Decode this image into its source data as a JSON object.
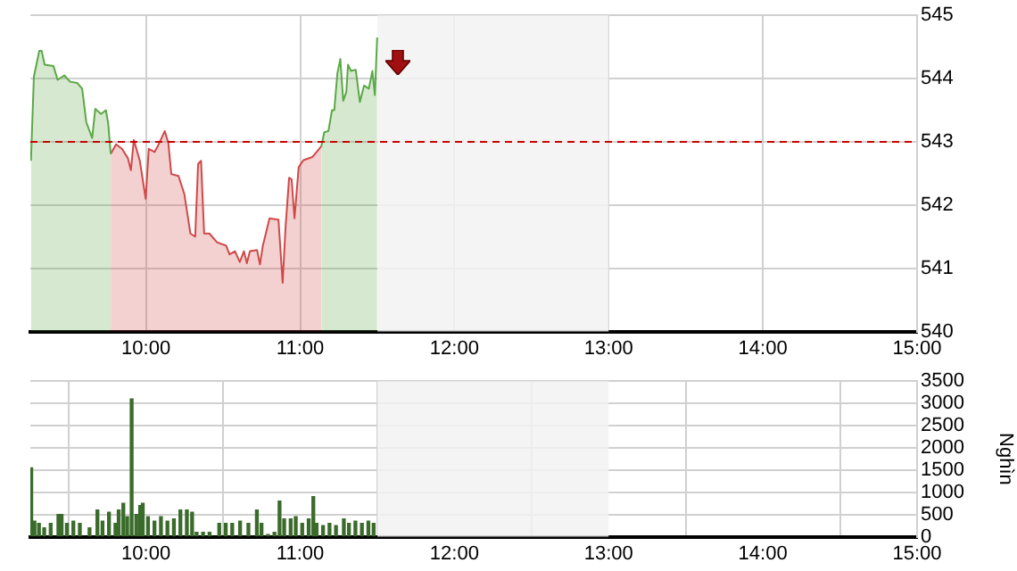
{
  "chart_data": [
    {
      "type": "area",
      "x": [
        9.254,
        9.273,
        9.308,
        9.323,
        9.343,
        9.4,
        9.427,
        9.47,
        9.508,
        9.555,
        9.586,
        9.613,
        9.651,
        9.671,
        9.709,
        9.74,
        9.755,
        9.771,
        9.806,
        9.844,
        9.883,
        9.902,
        9.921,
        9.96,
        9.998,
        10.018,
        10.056,
        10.076,
        10.122,
        10.145,
        10.164,
        10.211,
        10.249,
        10.288,
        10.319,
        10.338,
        10.357,
        10.377,
        10.411,
        10.461,
        10.519,
        10.542,
        10.577,
        10.608,
        10.635,
        10.654,
        10.674,
        10.72,
        10.739,
        10.758,
        10.801,
        10.859,
        10.886,
        10.905,
        10.928,
        10.944,
        10.963,
        10.99,
        11.021,
        11.079,
        11.106,
        11.137,
        11.156,
        11.183,
        11.206,
        11.221,
        11.241,
        11.26,
        11.279,
        11.299,
        11.31,
        11.329,
        11.36,
        11.387,
        11.414,
        11.445,
        11.468,
        11.484,
        11.499
      ],
      "series": [
        {
          "color": "#5aa845",
          "values": [
            542.7,
            544.03,
            544.44,
            544.44,
            544.22,
            544.2,
            543.98,
            544.05,
            543.95,
            543.93,
            543.84,
            543.31,
            543.06,
            543.52,
            543.44,
            543.5,
            543.29,
            542.81,
            null,
            null,
            null,
            null,
            null,
            null,
            null,
            null,
            null,
            null,
            null,
            null,
            null,
            null,
            null,
            null,
            null,
            null,
            null,
            null,
            null,
            null,
            null,
            null,
            null,
            null,
            null,
            null,
            null,
            null,
            null,
            null,
            null,
            null,
            null,
            null,
            null,
            null,
            null,
            null,
            null,
            null,
            null,
            542.93,
            543.15,
            543.17,
            543.5,
            543.5,
            544.08,
            544.31,
            543.65,
            543.79,
            544.22,
            544.12,
            544.14,
            543.63,
            543.89,
            543.84,
            544.12,
            543.74,
            544.65
          ]
        },
        {
          "color": "#d04848",
          "values": [
            null,
            null,
            null,
            null,
            null,
            null,
            null,
            null,
            null,
            null,
            null,
            null,
            null,
            null,
            null,
            null,
            null,
            542.81,
            542.96,
            542.89,
            542.74,
            542.55,
            543.03,
            542.7,
            542.1,
            542.89,
            542.84,
            542.93,
            543.17,
            542.98,
            542.49,
            542.46,
            542.17,
            541.55,
            541.5,
            542.65,
            542.7,
            541.55,
            541.55,
            541.41,
            541.36,
            541.22,
            541.27,
            541.1,
            541.27,
            541.08,
            541.27,
            541.29,
            541.06,
            541.36,
            541.79,
            541.77,
            540.77,
            541.65,
            542.43,
            542.41,
            541.79,
            542.6,
            542.71,
            542.76,
            542.84,
            542.93,
            null,
            null,
            null,
            null,
            null,
            null,
            null,
            null,
            null,
            null,
            null,
            null,
            null,
            null,
            null,
            null,
            null
          ]
        }
      ],
      "xlim": [
        9.25,
        15
      ],
      "xticks": [
        {
          "value": 10,
          "label": "10:00"
        },
        {
          "value": 11,
          "label": "11:00"
        },
        {
          "value": 12,
          "label": "12:00"
        },
        {
          "value": 13,
          "label": "13:00"
        },
        {
          "value": 14,
          "label": "14:00"
        },
        {
          "value": 15,
          "label": "15:00"
        }
      ],
      "ylim": [
        540,
        545
      ],
      "yticks": [
        540,
        541,
        542,
        543,
        544,
        545
      ],
      "grid": true,
      "ref_lines": [
        {
          "axis": "y",
          "value": 543,
          "color": "#cc0000",
          "line_style": "dashed"
        }
      ],
      "bands": [
        {
          "axis": "x",
          "from": 11.5,
          "to": 13,
          "color": "#f2f2f2"
        }
      ]
    },
    {
      "type": "bar",
      "x": [
        9.256,
        9.277,
        9.306,
        9.34,
        9.382,
        9.432,
        9.453,
        9.487,
        9.529,
        9.571,
        9.634,
        9.685,
        9.718,
        9.76,
        9.802,
        9.823,
        9.853,
        9.878,
        9.907,
        9.937,
        9.962,
        9.979,
        10.013,
        10.055,
        10.097,
        10.139,
        10.181,
        10.223,
        10.265,
        10.299,
        10.328,
        10.37,
        10.412,
        10.475,
        10.517,
        10.559,
        10.61,
        10.664,
        10.719,
        10.749,
        10.791,
        10.833,
        10.866,
        10.896,
        10.938,
        10.971,
        11.013,
        11.055,
        11.085,
        11.106,
        11.148,
        11.19,
        11.232,
        11.283,
        11.316,
        11.358,
        11.4,
        11.442,
        11.476
      ],
      "series": [
        {
          "color": "#3a6b2a",
          "values": [
            1550,
            350,
            300,
            200,
            300,
            500,
            500,
            300,
            350,
            300,
            200,
            600,
            350,
            550,
            300,
            600,
            750,
            450,
            3100,
            500,
            700,
            750,
            450,
            350,
            450,
            350,
            400,
            600,
            600,
            550,
            100,
            100,
            100,
            300,
            300,
            300,
            350,
            300,
            600,
            300,
            50,
            100,
            800,
            400,
            400,
            450,
            300,
            400,
            900,
            300,
            250,
            300,
            250,
            400,
            300,
            350,
            300,
            350,
            300
          ]
        }
      ],
      "xlim": [
        9.25,
        15
      ],
      "xticks": [
        {
          "value": 10,
          "label": "10:00"
        },
        {
          "value": 11,
          "label": "11:00"
        },
        {
          "value": 12,
          "label": "12:00"
        },
        {
          "value": 13,
          "label": "13:00"
        },
        {
          "value": 14,
          "label": "14:00"
        },
        {
          "value": 15,
          "label": "15:00"
        }
      ],
      "ylim": [
        0,
        3500
      ],
      "yticks": [
        0,
        500,
        1000,
        1500,
        2000,
        2500,
        3000,
        3500
      ],
      "ylabel": "Nghìn",
      "grid": true,
      "bands": [
        {
          "axis": "x",
          "from": 11.5,
          "to": 13,
          "color": "#f2f2f2"
        }
      ]
    }
  ]
}
